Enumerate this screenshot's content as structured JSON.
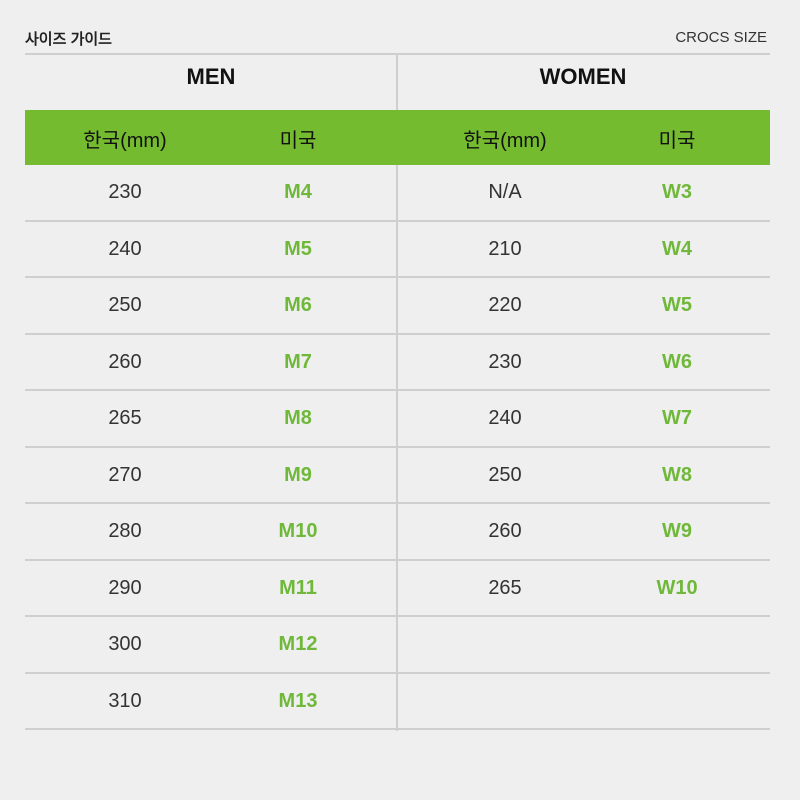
{
  "header": {
    "title": "사이즈 가이드",
    "subtitle": "CROCS SIZE"
  },
  "groups": {
    "men": "MEN",
    "women": "WOMEN"
  },
  "columns": {
    "korea": "한국(mm)",
    "us": "미국"
  },
  "colors": {
    "accent": "#74bb2f",
    "us_text": "#6fb83a",
    "background": "#efefef"
  },
  "rows": [
    {
      "men_kr": "230",
      "men_us": "M4",
      "women_kr": "N/A",
      "women_us": "W3"
    },
    {
      "men_kr": "240",
      "men_us": "M5",
      "women_kr": "210",
      "women_us": "W4"
    },
    {
      "men_kr": "250",
      "men_us": "M6",
      "women_kr": "220",
      "women_us": "W5"
    },
    {
      "men_kr": "260",
      "men_us": "M7",
      "women_kr": "230",
      "women_us": "W6"
    },
    {
      "men_kr": "265",
      "men_us": "M8",
      "women_kr": "240",
      "women_us": "W7"
    },
    {
      "men_kr": "270",
      "men_us": "M9",
      "women_kr": "250",
      "women_us": "W8"
    },
    {
      "men_kr": "280",
      "men_us": "M10",
      "women_kr": "260",
      "women_us": "W9"
    },
    {
      "men_kr": "290",
      "men_us": "M11",
      "women_kr": "265",
      "women_us": "W10"
    },
    {
      "men_kr": "300",
      "men_us": "M12",
      "women_kr": "",
      "women_us": ""
    },
    {
      "men_kr": "310",
      "men_us": "M13",
      "women_kr": "",
      "women_us": ""
    }
  ]
}
